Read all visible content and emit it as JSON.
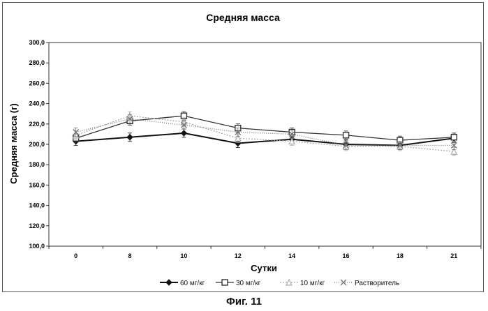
{
  "chart_data": {
    "type": "line",
    "title": "Средняя масса",
    "xlabel": "Сутки",
    "ylabel": "Средняя масса (г)",
    "categories": [
      "0",
      "8",
      "10",
      "12",
      "14",
      "16",
      "18",
      "21"
    ],
    "yticks": [
      "100,0",
      "120,0",
      "140,0",
      "160,0",
      "180,0",
      "200,0",
      "220,0",
      "240,0",
      "260,0",
      "280,0",
      "300,0"
    ],
    "ylim": [
      100,
      300
    ],
    "grid": false,
    "legend_position": "bottom",
    "series": [
      {
        "name": "60 мг/кг",
        "values": [
          203,
          207,
          211,
          201,
          205,
          200,
          199,
          206
        ],
        "color": "#111111",
        "marker": "diamond",
        "dash": ""
      },
      {
        "name": "30 мг/кг",
        "values": [
          206,
          223,
          228,
          216,
          212,
          209,
          204,
          207
        ],
        "color": "#333333",
        "marker": "square",
        "dash": ""
      },
      {
        "name": "10 мг/кг",
        "values": [
          209,
          228,
          222,
          206,
          203,
          198,
          198,
          193
        ],
        "color": "#aaaaaa",
        "marker": "triangle",
        "dash": "2,2"
      },
      {
        "name": "Растворитель",
        "values": [
          212,
          225,
          219,
          212,
          210,
          199,
          199,
          199
        ],
        "color": "#777777",
        "marker": "x",
        "dash": "1,2"
      }
    ]
  },
  "figure_caption": "Фиг. 11"
}
